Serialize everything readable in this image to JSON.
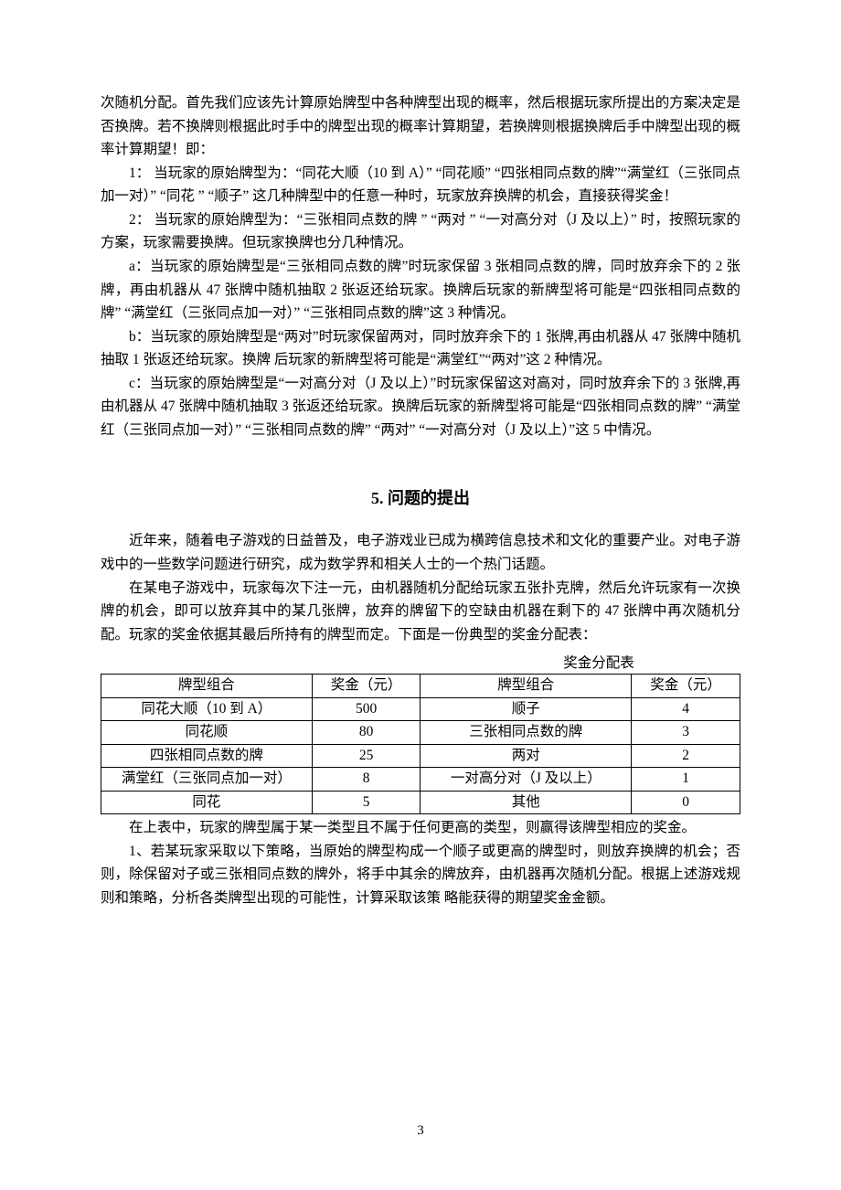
{
  "paras": {
    "p1": "次随机分配。首先我们应该先计算原始牌型中各种牌型出现的概率，然后根据玩家所提出的方案决定是否换牌。若不换牌则根据此时手中的牌型出现的概率计算期望，若换牌则根据换牌后手中牌型出现的概率计算期望！即：",
    "p2": "1：  当玩家的原始牌型为：“同花大顺（10 到 A）” “同花顺” “四张相同点数的牌”“满堂红（三张同点加一对）” “同花 ” “顺子” 这几种牌型中的任意一种时，玩家放弃换牌的机会，直接获得奖金！",
    "p3": "2：  当玩家的原始牌型为：“三张相同点数的牌 ” “两对 ” “一对高分对（J 及以上）” 时，按照玩家的方案，玩家需要换牌。但玩家换牌也分几种情况。",
    "p4": "a：当玩家的原始牌型是“三张相同点数的牌”时玩家保留 3 张相同点数的牌，同时放弃余下的 2 张牌，再由机器从 47 张牌中随机抽取 2 张返还给玩家。换牌后玩家的新牌型将可能是“四张相同点数的牌” “满堂红（三张同点加一对）” “三张相同点数的牌”这 3 种情况。",
    "p5": "b：当玩家的原始牌型是“两对”时玩家保留两对，同时放弃余下的 1 张牌,再由机器从 47 张牌中随机抽取 1 张返还给玩家。换牌  后玩家的新牌型将可能是“满堂红”“两对”这 2 种情况。",
    "p6": "c：当玩家的原始牌型是“一对高分对（J 及以上）”时玩家保留这对高对，同时放弃余下的 3 张牌,再由机器从 47 张牌中随机抽取 3 张返还给玩家。换牌后玩家的新牌型将可能是“四张相同点数的牌” “满堂红（三张同点加一对）” “三张相同点数的牌” “两对” “一对高分对（J 及以上）”这 5 中情况。"
  },
  "heading": {
    "num": "5.",
    "txt": "问题的提出"
  },
  "section5": {
    "p1": "近年来，随着电子游戏的日益普及，电子游戏业已成为横跨信息技术和文化的重要产业。对电子游戏中的一些数学问题进行研究，成为数学界和相关人士的一个热门话题。",
    "p2": "在某电子游戏中，玩家每次下注一元，由机器随机分配给玩家五张扑克牌，然后允许玩家有一次换牌的机会，即可以放弃其中的某几张牌，放弃的牌留下的空缺由机器在剩下的 47 张牌中再次随机分配。玩家的奖金依据其最后所持有的牌型而定。下面是一份典型的奖金分配表：",
    "after1": "在上表中，玩家的牌型属于某一类型且不属于任何更高的类型，则赢得该牌型相应的奖金。",
    "after2": "1、若某玩家采取以下策略，当原始的牌型构成一个顺子或更高的牌型时，则放弃换牌的机会；否则，除保留对子或三张相同点数的牌外，将手中其余的牌放弃，由机器再次随机分配。根据上述游戏规则和策略，分析各类牌型出现的可能性，计算采取该策  略能获得的期望奖金金额。"
  },
  "table": {
    "caption": "奖金分配表",
    "headers": [
      "牌型组合",
      "奖金（元）",
      "牌型组合",
      "奖金（元）"
    ],
    "rows": [
      [
        "同花大顺（10 到 A）",
        "500",
        "顺子",
        "4"
      ],
      [
        "同花顺",
        "80",
        "三张相同点数的牌",
        "3"
      ],
      [
        "四张相同点数的牌",
        "25",
        "两对",
        "2"
      ],
      [
        "满堂红（三张同点加一对）",
        "8",
        "一对高分对（J 及以上）",
        "1"
      ],
      [
        "同花",
        "5",
        "其他",
        "0"
      ]
    ],
    "col_widths": [
      "33%",
      "17%",
      "33%",
      "17%"
    ],
    "border_color": "#000000",
    "fontsize": 15.5
  },
  "pagenum": "3",
  "style": {
    "body_fontsize": 15.5,
    "heading_fontsize": 18,
    "text_color": "#000000",
    "background_color": "#ffffff"
  }
}
